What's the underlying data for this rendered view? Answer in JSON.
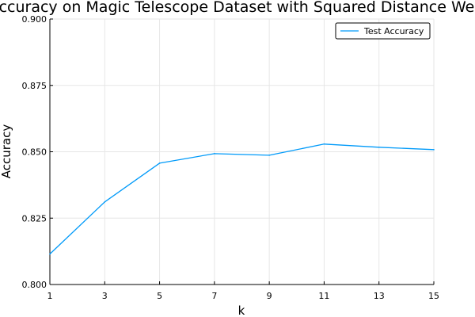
{
  "chart_data": {
    "type": "line",
    "title": "Test Accuracy on Magic Telescope Dataset with Squared Distance Weighting",
    "xlabel": "k",
    "ylabel": "Accuracy",
    "xlim": [
      1,
      15
    ],
    "ylim": [
      0.8,
      0.9
    ],
    "xticks": [
      1,
      3,
      5,
      7,
      9,
      11,
      13,
      15
    ],
    "xtick_labels": [
      "1",
      "3",
      "5",
      "7",
      "9",
      "11",
      "13",
      "15"
    ],
    "yticks": [
      0.8,
      0.825,
      0.85,
      0.875,
      0.9
    ],
    "ytick_labels": [
      "0.800",
      "0.825",
      "0.850",
      "0.875",
      "0.900"
    ],
    "grid": true,
    "legend_position": "top-right",
    "series": [
      {
        "name": "Test Accuracy",
        "color": "#009af9",
        "x": [
          1,
          3,
          5,
          7,
          9,
          11,
          13,
          15
        ],
        "y": [
          0.8115,
          0.8311,
          0.8457,
          0.8493,
          0.8487,
          0.8529,
          0.8517,
          0.8508
        ]
      }
    ]
  }
}
